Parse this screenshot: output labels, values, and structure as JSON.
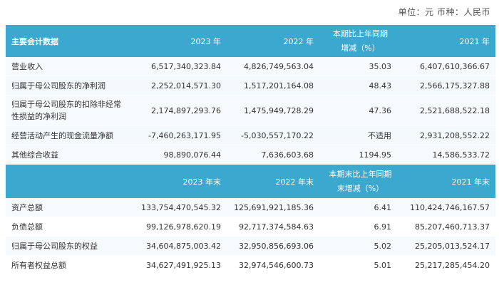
{
  "unit_line": "单位：元  币种：人民币",
  "header1": {
    "item": "主要会计数据",
    "y2023": "2023 年",
    "y2022": "2022 年",
    "change_l1": "本期比上年同期",
    "change_l2": "增减（%）",
    "y2021": "2021 年"
  },
  "rows1": [
    {
      "label": "营业收入",
      "v2023": "6,517,340,323.84",
      "v2022": "4,826,749,563.04",
      "change": "35.03",
      "v2021": "6,407,610,366.67"
    },
    {
      "label": "归属于母公司股东的净利润",
      "v2023": "2,252,014,571.30",
      "v2022": "1,517,201,164.08",
      "change": "48.43",
      "v2021": "2,566,175,327.88"
    },
    {
      "label": "归属于母公司股东的扣除非经常性损益的净利润",
      "v2023": "2,174,897,293.76",
      "v2022": "1,475,949,728.29",
      "change": "47.36",
      "v2021": "2,521,688,522.18"
    },
    {
      "label": "经营活动产生的现金流量净额",
      "v2023": "-7,460,263,171.95",
      "v2022": "-5,030,557,170.22",
      "change": "不适用",
      "v2021": "2,931,208,552.22"
    },
    {
      "label": "其他综合收益",
      "v2023": "98,890,076.44",
      "v2022": "7,636,603.68",
      "change": "1194.95",
      "v2021": "14,586,533.72"
    }
  ],
  "header2": {
    "item": "",
    "y2023": "2023 年末",
    "y2022": "2022 年末",
    "change_l1": "本期末比上年同期",
    "change_l2": "末增减（%）",
    "y2021": "2021 年末"
  },
  "rows2": [
    {
      "label": "资产总额",
      "v2023": "133,754,470,545.32",
      "v2022": "125,691,921,185.36",
      "change": "6.41",
      "v2021": "110,424,746,167.57"
    },
    {
      "label": "负债总额",
      "v2023": "99,126,978,620.19",
      "v2022": "92,717,374,584.63",
      "change": "6.91",
      "v2021": "85,207,460,713.37"
    },
    {
      "label": "归属于母公司股东的权益",
      "v2023": "34,604,875,003.42",
      "v2022": "32,950,856,693.06",
      "change": "5.02",
      "v2021": "25,205,013,524.17"
    },
    {
      "label": "所有者权益总额",
      "v2023": "34,627,491,925.13",
      "v2022": "32,974,546,600.73",
      "change": "5.01",
      "v2021": "25,217,285,454.20"
    }
  ]
}
